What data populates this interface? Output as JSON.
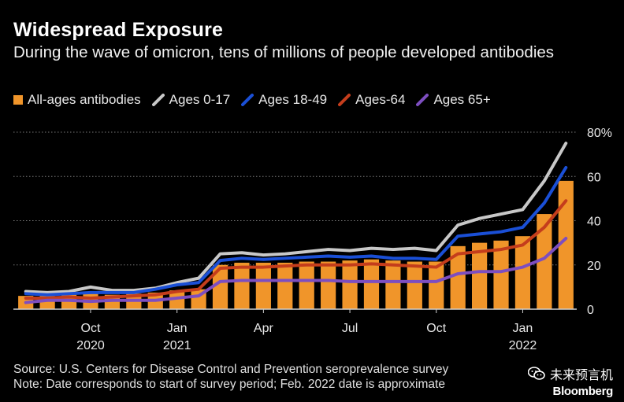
{
  "header": {
    "title": "Widespread Exposure",
    "subtitle": "During the wave of omicron, tens of millions of people developed antibodies"
  },
  "legend": [
    {
      "label": "All-ages antibodies",
      "kind": "bar",
      "color": "#f0952a"
    },
    {
      "label": "Ages 0-17",
      "kind": "line",
      "color": "#c8c8c8"
    },
    {
      "label": "Ages 18-49",
      "kind": "line",
      "color": "#1a4fd6"
    },
    {
      "label": "Ages-64",
      "kind": "line",
      "color": "#c43d1c"
    },
    {
      "label": "Ages 65+",
      "kind": "line",
      "color": "#7d4ec0"
    }
  ],
  "footer": {
    "source": "Source: U.S. Centers for Disease Control and Prevention seroprevalence survey",
    "note": "Note: Date corresponds to start of survey period; Feb. 2022 date is approximate",
    "brand_cn": "未来预言机",
    "brand": "Bloomberg"
  },
  "chart_data": {
    "type": "bar",
    "ylim": [
      0,
      80
    ],
    "yticks": [
      0,
      20,
      40,
      60,
      80
    ],
    "ytick_labels": [
      "0",
      "20",
      "40",
      "60",
      "80%"
    ],
    "xtick_labels": [
      {
        "label": "Oct",
        "sub": "2020",
        "index": 3
      },
      {
        "label": "Jan",
        "sub": "2021",
        "index": 7
      },
      {
        "label": "Apr",
        "sub": "",
        "index": 11
      },
      {
        "label": "Jul",
        "sub": "",
        "index": 15
      },
      {
        "label": "Oct",
        "sub": "",
        "index": 19
      },
      {
        "label": "Jan",
        "sub": "2022",
        "index": 23
      }
    ],
    "bars": {
      "name": "All-ages antibodies",
      "color": "#f0952a",
      "values": [
        6,
        6,
        6.5,
        7,
        6.5,
        7,
        7.5,
        8.5,
        9,
        20,
        21,
        21,
        21,
        21.5,
        21.5,
        22,
        22.5,
        22,
        21.5,
        21.5,
        28.5,
        30,
        31,
        33,
        43,
        58
      ]
    },
    "series": [
      {
        "name": "Ages 0-17",
        "color": "#c8c8c8",
        "values": [
          8,
          7.5,
          8,
          10,
          8.5,
          8.5,
          9.5,
          12,
          14,
          25,
          25.5,
          24.5,
          25,
          26,
          27,
          26.5,
          27.5,
          27,
          27.5,
          26.5,
          38,
          41,
          43,
          45,
          58,
          75
        ]
      },
      {
        "name": "Ages 18-49",
        "color": "#1a4fd6",
        "values": [
          7,
          6.5,
          7,
          7.5,
          7.5,
          7.5,
          9,
          11,
          12,
          22,
          23,
          22.5,
          23,
          23.5,
          24,
          23.5,
          24,
          23,
          23,
          22.5,
          33,
          34,
          35,
          37,
          48,
          64
        ]
      },
      {
        "name": "Ages-64",
        "color": "#c43d1c",
        "values": [
          5,
          5,
          5.5,
          5,
          5.5,
          6,
          6.5,
          8,
          9,
          18.5,
          19,
          19,
          19.5,
          20,
          20,
          20,
          20.5,
          20,
          19.5,
          19,
          25,
          26,
          27,
          29,
          37,
          49
        ]
      },
      {
        "name": "Ages 65+",
        "color": "#7d4ec0",
        "values": [
          3,
          4,
          4,
          3.5,
          4,
          4,
          4,
          5,
          6,
          12.5,
          13,
          13,
          13,
          13,
          13,
          12.5,
          12.5,
          12.5,
          12.5,
          12.5,
          16,
          17,
          17,
          19,
          23,
          32
        ]
      }
    ],
    "grid": true,
    "legend_position": "top-left"
  }
}
